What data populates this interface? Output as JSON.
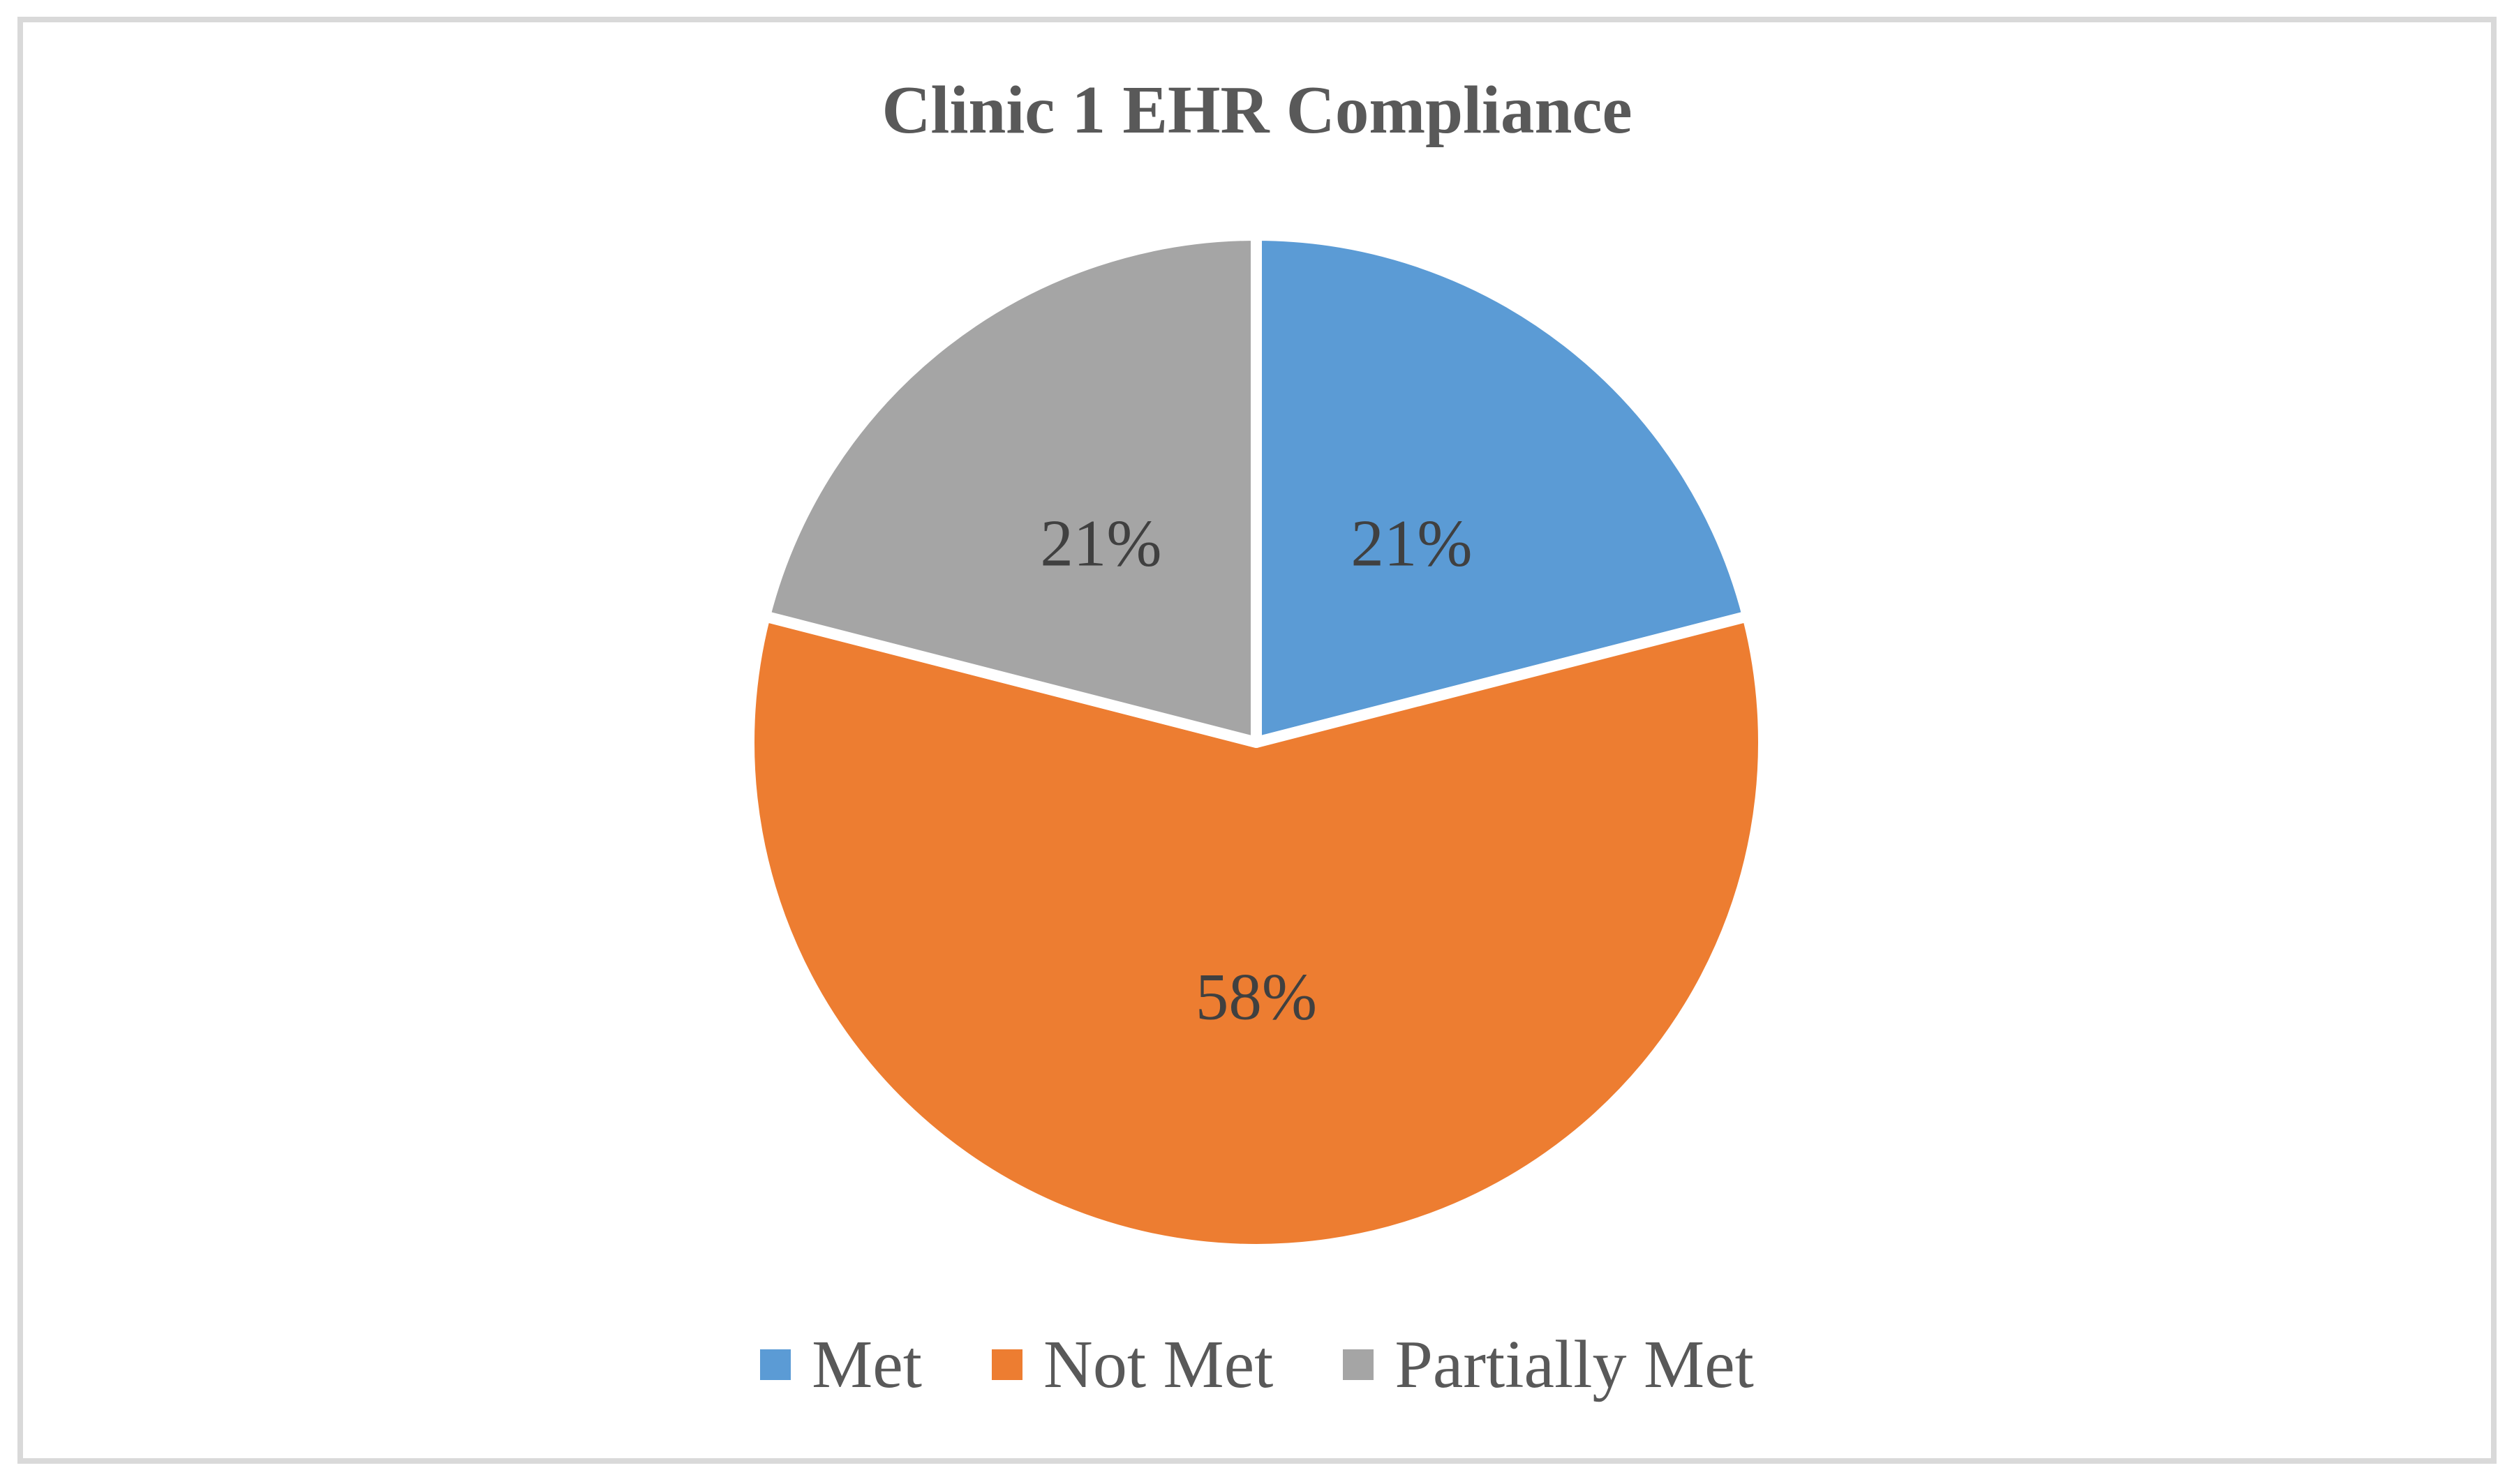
{
  "figure": {
    "background_color": "#FFFFFF",
    "border_color": "#D9D9D9"
  },
  "chart_data": {
    "type": "pie",
    "title": "Clinic 1 EHR Compliance",
    "categories": [
      "Met",
      "Not Met",
      "Partially Met"
    ],
    "values": [
      21,
      58,
      21
    ],
    "data_labels": [
      "21%",
      "58%",
      "21%"
    ],
    "colors": [
      "#5B9BD5",
      "#ED7D31",
      "#A5A5A5"
    ],
    "slice_border_color": "#FFFFFF",
    "title_color": "#595959",
    "data_label_color": "#404040",
    "legend_text_color": "#595959",
    "start_angle_deg": 0,
    "direction": "clockwise",
    "legend_position": "bottom"
  }
}
